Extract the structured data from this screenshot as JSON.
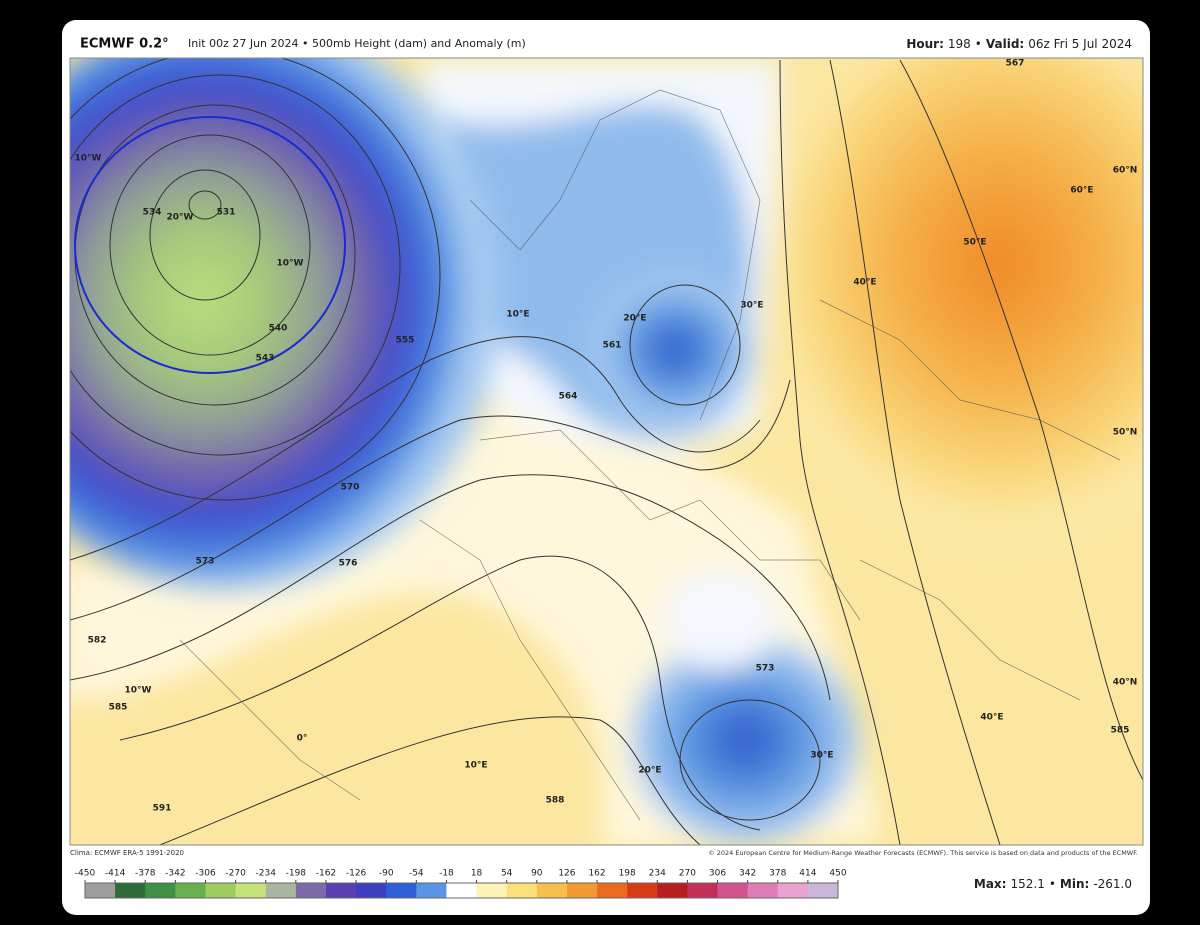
{
  "header": {
    "model": "ECMWF 0.2°",
    "run": "Init 00z 27 Jun 2024 • 500mb Height (dam) and Anomaly (m)",
    "hour_label": "Hour:",
    "hour_value": "198",
    "separator": "•",
    "valid_label": "Valid:",
    "valid_value": "06z Fri 5 Jul 2024"
  },
  "map": {
    "labels": [
      "10°W",
      "20°W",
      "10°W",
      "10°E",
      "20°E",
      "30°E",
      "40°E",
      "50°E",
      "60°E",
      "60°N",
      "50°N",
      "40°N",
      "40°E",
      "30°E",
      "20°E",
      "10°E",
      "0°",
      "10°W",
      "534",
      "531",
      "540",
      "543",
      "555",
      "561",
      "564",
      "570",
      "573",
      "576",
      "582",
      "585",
      "588",
      "591",
      "585",
      "567",
      "573"
    ]
  },
  "footer": {
    "clima": "Clima: ECMWF ERA-5 1991-2020",
    "copyright": "© 2024 European Centre for Medium-Range Weather Forecasts (ECMWF). This service is based on data and products of the ECMWF."
  },
  "legend": {
    "ticks": [
      -450,
      -414,
      -378,
      -342,
      -306,
      -270,
      -234,
      -198,
      -162,
      -126,
      -90,
      -54,
      -18,
      18,
      54,
      90,
      126,
      162,
      198,
      234,
      270,
      306,
      342,
      378,
      414,
      450
    ],
    "colors": [
      "#9e9e9e",
      "#2f6b3a",
      "#3f8f47",
      "#66b04f",
      "#9ccc5f",
      "#c6e27a",
      "#a9b7a2",
      "#7e6aa8",
      "#5b3fb0",
      "#3d3fc0",
      "#2f5fd6",
      "#5b93e6",
      "#ffffff",
      "#fdf2b8",
      "#fbe17a",
      "#f7c04d",
      "#f29a32",
      "#ea6a1e",
      "#d83a18",
      "#b71e1e",
      "#c2305a",
      "#d2548f",
      "#dd7fb6",
      "#e6a4cf",
      "#c9b6d8"
    ],
    "max_label": "Max:",
    "max_value": "152.1",
    "min_label": "Min:",
    "min_value": "-261.0"
  }
}
